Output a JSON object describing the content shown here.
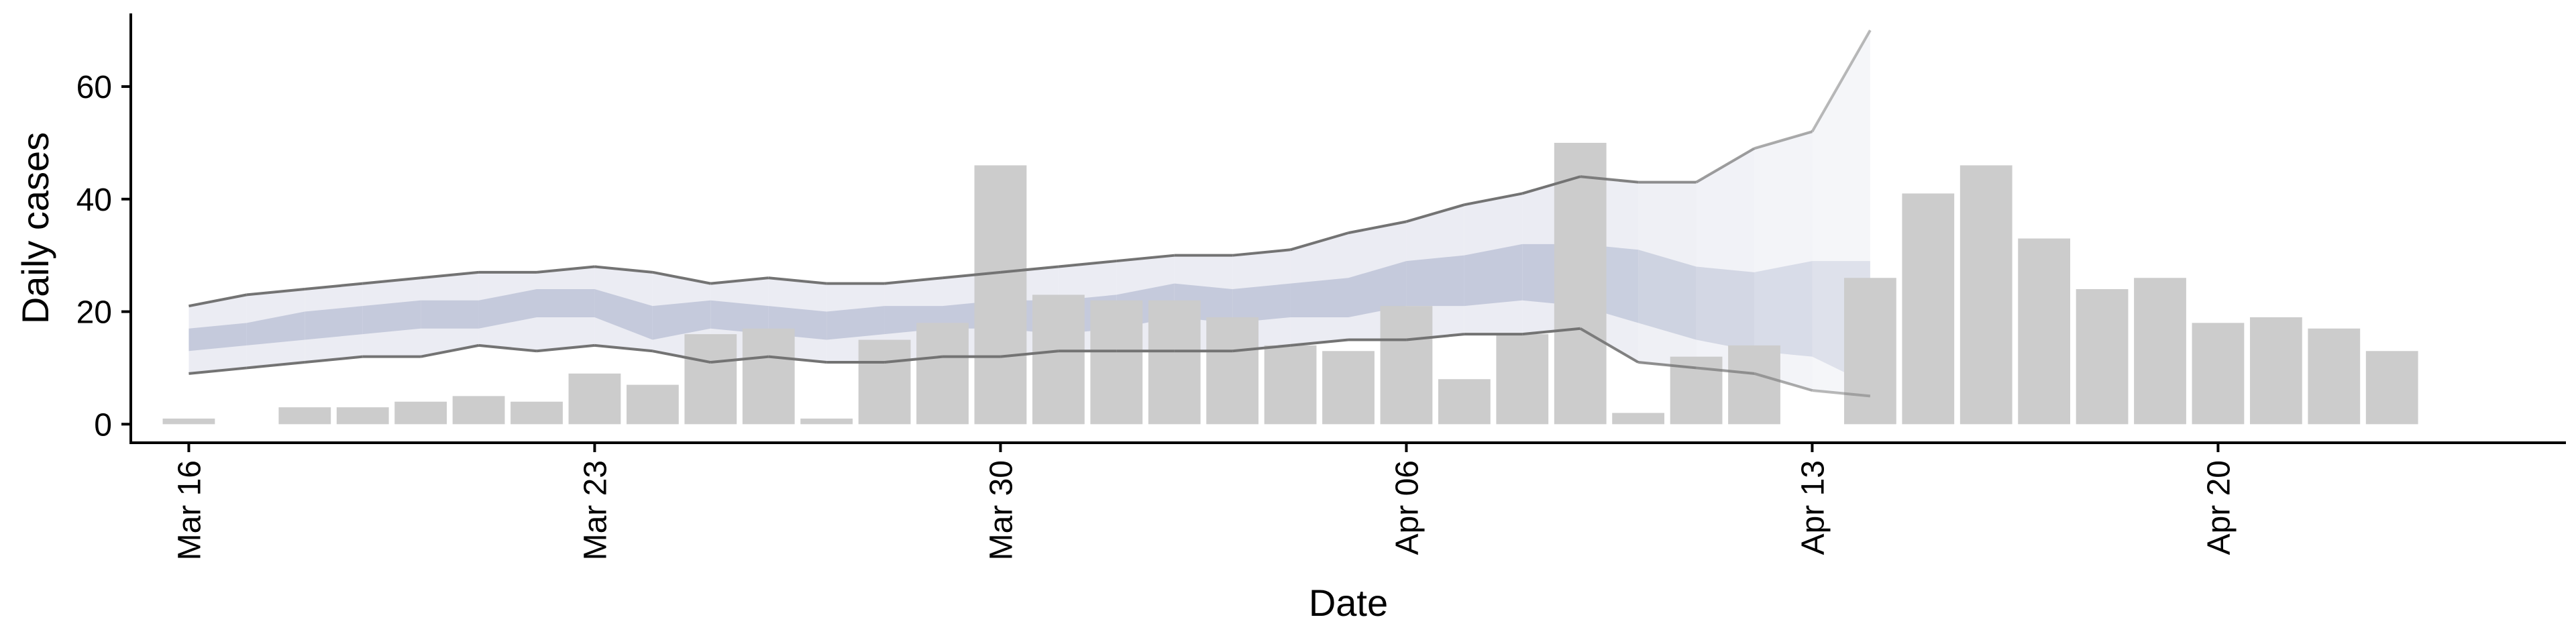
{
  "chart_data": {
    "type": "bar",
    "xlabel": "Date",
    "ylabel": "Daily cases",
    "ylim": [
      -3.3,
      73
    ],
    "y_ticks": [
      0,
      20,
      40,
      60
    ],
    "x_ticks": [
      {
        "label": "Mar 16",
        "date": "2020-03-16"
      },
      {
        "label": "Mar 23",
        "date": "2020-03-23"
      },
      {
        "label": "Mar 30",
        "date": "2020-03-30"
      },
      {
        "label": "Apr 06",
        "date": "2020-04-06"
      },
      {
        "label": "Apr 13",
        "date": "2020-04-13"
      },
      {
        "label": "Apr 20",
        "date": "2020-04-20"
      }
    ],
    "xlim": [
      "2020-03-15",
      "2020-04-26"
    ],
    "grid": false,
    "bar_color": "#cccccc",
    "band_outer_color": "#e4e6ef",
    "band_inner_color": "#b8bfd4",
    "bound_line_color": "#737373",
    "series": [
      {
        "kind": "bar",
        "x": [
          "2020-03-16",
          "2020-03-17",
          "2020-03-18",
          "2020-03-19",
          "2020-03-20",
          "2020-03-21",
          "2020-03-22",
          "2020-03-23",
          "2020-03-24",
          "2020-03-25",
          "2020-03-26",
          "2020-03-27",
          "2020-03-28",
          "2020-03-29",
          "2020-03-30",
          "2020-03-31",
          "2020-04-01",
          "2020-04-02",
          "2020-04-03",
          "2020-04-04",
          "2020-04-05",
          "2020-04-06",
          "2020-04-07",
          "2020-04-08",
          "2020-04-09",
          "2020-04-10",
          "2020-04-11",
          "2020-04-12",
          "2020-04-13",
          "2020-04-14",
          "2020-04-15",
          "2020-04-16",
          "2020-04-17",
          "2020-04-18",
          "2020-04-19",
          "2020-04-20",
          "2020-04-21",
          "2020-04-22",
          "2020-04-23",
          "2020-04-24"
        ],
        "values": [
          1,
          0,
          3,
          3,
          4,
          5,
          4,
          9,
          7,
          16,
          17,
          1,
          15,
          18,
          46,
          23,
          22,
          22,
          19,
          14,
          13,
          21,
          8,
          16,
          50,
          2,
          12,
          14,
          0,
          26,
          41,
          46,
          33,
          24,
          26,
          18,
          19,
          17,
          13,
          0
        ]
      },
      {
        "kind": "range",
        "x": [
          "2020-03-16",
          "2020-03-17",
          "2020-03-18",
          "2020-03-19",
          "2020-03-20",
          "2020-03-21",
          "2020-03-22",
          "2020-03-23",
          "2020-03-24",
          "2020-03-25",
          "2020-03-26",
          "2020-03-27",
          "2020-03-28",
          "2020-03-29",
          "2020-03-30",
          "2020-03-31",
          "2020-04-01",
          "2020-04-02",
          "2020-04-03",
          "2020-04-04",
          "2020-04-05",
          "2020-04-06",
          "2020-04-07",
          "2020-04-08",
          "2020-04-09",
          "2020-04-10",
          "2020-04-11",
          "2020-04-12",
          "2020-04-13",
          "2020-04-14"
        ],
        "upper90": [
          21,
          23,
          24,
          25,
          26,
          27,
          27,
          28,
          27,
          25,
          26,
          25,
          25,
          26,
          27,
          28,
          29,
          30,
          30,
          31,
          34,
          36,
          39,
          41,
          44,
          43,
          43,
          49,
          52,
          70
        ],
        "lower90": [
          9,
          10,
          11,
          12,
          12,
          14,
          13,
          14,
          13,
          11,
          12,
          11,
          11,
          12,
          12,
          13,
          13,
          13,
          13,
          14,
          15,
          15,
          16,
          16,
          17,
          11,
          10,
          9,
          6,
          5
        ],
        "upper50": [
          17,
          18,
          20,
          21,
          22,
          22,
          24,
          24,
          21,
          22,
          21,
          20,
          21,
          21,
          22,
          22,
          23,
          25,
          24,
          25,
          26,
          29,
          30,
          32,
          32,
          31,
          28,
          27,
          29,
          29
        ],
        "lower50": [
          13,
          14,
          15,
          16,
          17,
          17,
          19,
          19,
          15,
          17,
          16,
          15,
          16,
          17,
          17,
          16,
          17,
          19,
          18,
          19,
          19,
          21,
          21,
          22,
          21,
          18,
          15,
          13,
          12,
          7
        ]
      }
    ]
  }
}
